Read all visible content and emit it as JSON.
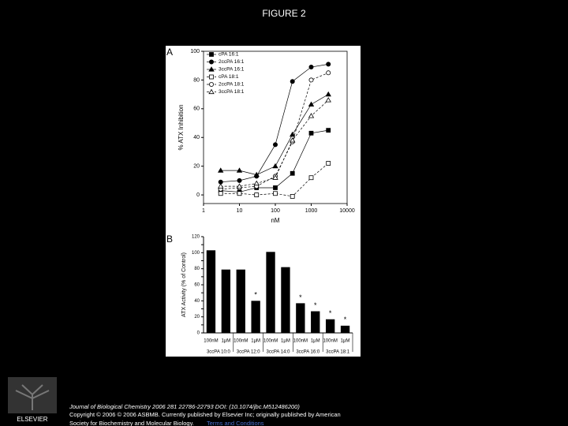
{
  "slide_title": "FIGURE 2",
  "chart_data": [
    {
      "type": "line",
      "panel": "A",
      "y_label": "% ATX Inhibition",
      "x_label": "nM",
      "x_scale": "log",
      "xlim": [
        1,
        10000
      ],
      "xticks": [
        1,
        10,
        100,
        1000,
        10000
      ],
      "ylim": [
        -6,
        100
      ],
      "yticks": [
        0,
        20,
        40,
        60,
        80,
        100
      ],
      "legend": "top-left",
      "x": [
        3,
        10,
        30,
        100,
        300,
        1000,
        3000
      ],
      "series": [
        {
          "name": "cPA 16:1",
          "color": "#000000",
          "marker": "square",
          "filled": true,
          "values": [
            3,
            2,
            5,
            5,
            15,
            43,
            45
          ]
        },
        {
          "name": "2ccPA 16:1",
          "color": "#000000",
          "marker": "circle",
          "filled": true,
          "values": [
            9,
            10,
            13,
            35,
            79,
            89,
            91
          ]
        },
        {
          "name": "3ccPA 16:1",
          "color": "#000000",
          "marker": "triangle",
          "filled": true,
          "values": [
            17,
            17,
            14,
            20,
            42,
            63,
            70
          ]
        },
        {
          "name": "cPA 18:1",
          "color": "#000000",
          "marker": "square",
          "filled": false,
          "values": [
            1,
            1,
            0,
            1,
            -1,
            12,
            22
          ]
        },
        {
          "name": "2ccPA 18:1",
          "color": "#000000",
          "marker": "circle",
          "filled": false,
          "values": [
            4,
            5,
            6,
            13,
            37,
            80,
            85
          ]
        },
        {
          "name": "3ccPA 18:1",
          "color": "#000000",
          "marker": "triangle",
          "filled": false,
          "values": [
            6,
            6,
            8,
            12,
            38,
            55,
            66
          ]
        }
      ]
    },
    {
      "type": "bar",
      "panel": "B",
      "y_label": "ATX Activity (% of Control)",
      "color": "#000000",
      "ylim": [
        0,
        120
      ],
      "yticks": [
        0,
        10,
        20,
        30,
        40,
        50,
        60,
        70,
        80,
        90,
        100,
        110,
        120
      ],
      "categories": [
        "100nM",
        "1μM",
        "100nM",
        "1μM",
        "100nM",
        "1μM",
        "100nM",
        "1μM",
        "100nM",
        "1μM"
      ],
      "groups": [
        "3ccPA 10:0",
        "3ccPA 12:0",
        "3ccPA 14:0",
        "3ccPA 16:0",
        "3ccPA 18:1"
      ],
      "values": [
        103,
        79,
        79,
        40,
        101,
        82,
        37,
        27,
        17,
        9
      ],
      "markers": [
        null,
        null,
        null,
        "*",
        null,
        null,
        "*",
        "*",
        "*",
        "*"
      ]
    }
  ],
  "footer": {
    "logo": "ELSEVIER",
    "journal": "Journal of Biological Chemistry 2006 281 22786-22793 DOI: (10.1074/jbc.M512486200)",
    "copyright_lines": [
      "Copyright © 2006 © 2006 ASBMB. Currently published by Elsevier Inc; originally published by American",
      "Society for Biochemistry and Molecular Biology."
    ],
    "terms_link": "Terms and Conditions"
  }
}
